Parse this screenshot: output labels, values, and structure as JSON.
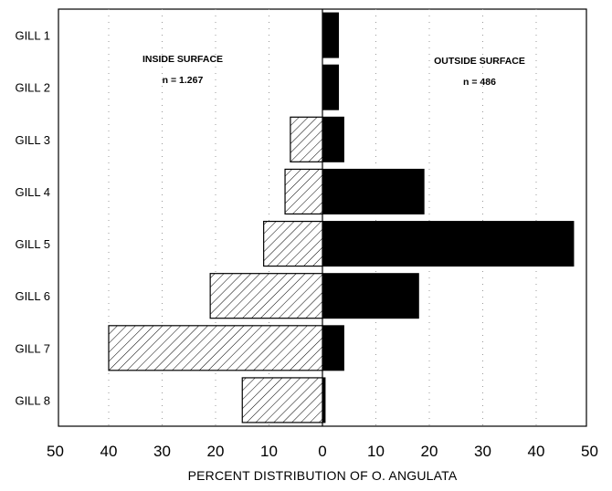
{
  "chart_data": {
    "type": "bar",
    "orientation": "horizontal-diverging",
    "categories": [
      "GILL 1",
      "GILL 2",
      "GILL 3",
      "GILL 4",
      "GILL 5",
      "GILL 6",
      "GILL 7",
      "GILL 8"
    ],
    "series": [
      {
        "name": "INSIDE SURFACE",
        "n_label": "n = 1.267",
        "values": [
          0,
          0,
          6,
          7,
          11,
          21,
          40,
          15
        ],
        "fill": "hatched",
        "side": "left"
      },
      {
        "name": "OUTSIDE SURFACE",
        "n_label": "n = 486",
        "values": [
          3,
          3,
          4,
          19,
          47,
          18,
          4,
          0.5
        ],
        "fill": "solid",
        "side": "right"
      }
    ],
    "xlabel": "PERCENT DISTRIBUTION OF O. ANGULATA",
    "x_tick_labels": [
      "50",
      "40",
      "30",
      "20",
      "10",
      "0",
      "10",
      "20",
      "30",
      "40",
      "50"
    ],
    "xlim": [
      -50,
      50
    ],
    "grid": "dotted vertical",
    "legend": "none (series labelled inside plot)",
    "colors": {
      "bars": "#000000",
      "background": "#ffffff"
    }
  }
}
